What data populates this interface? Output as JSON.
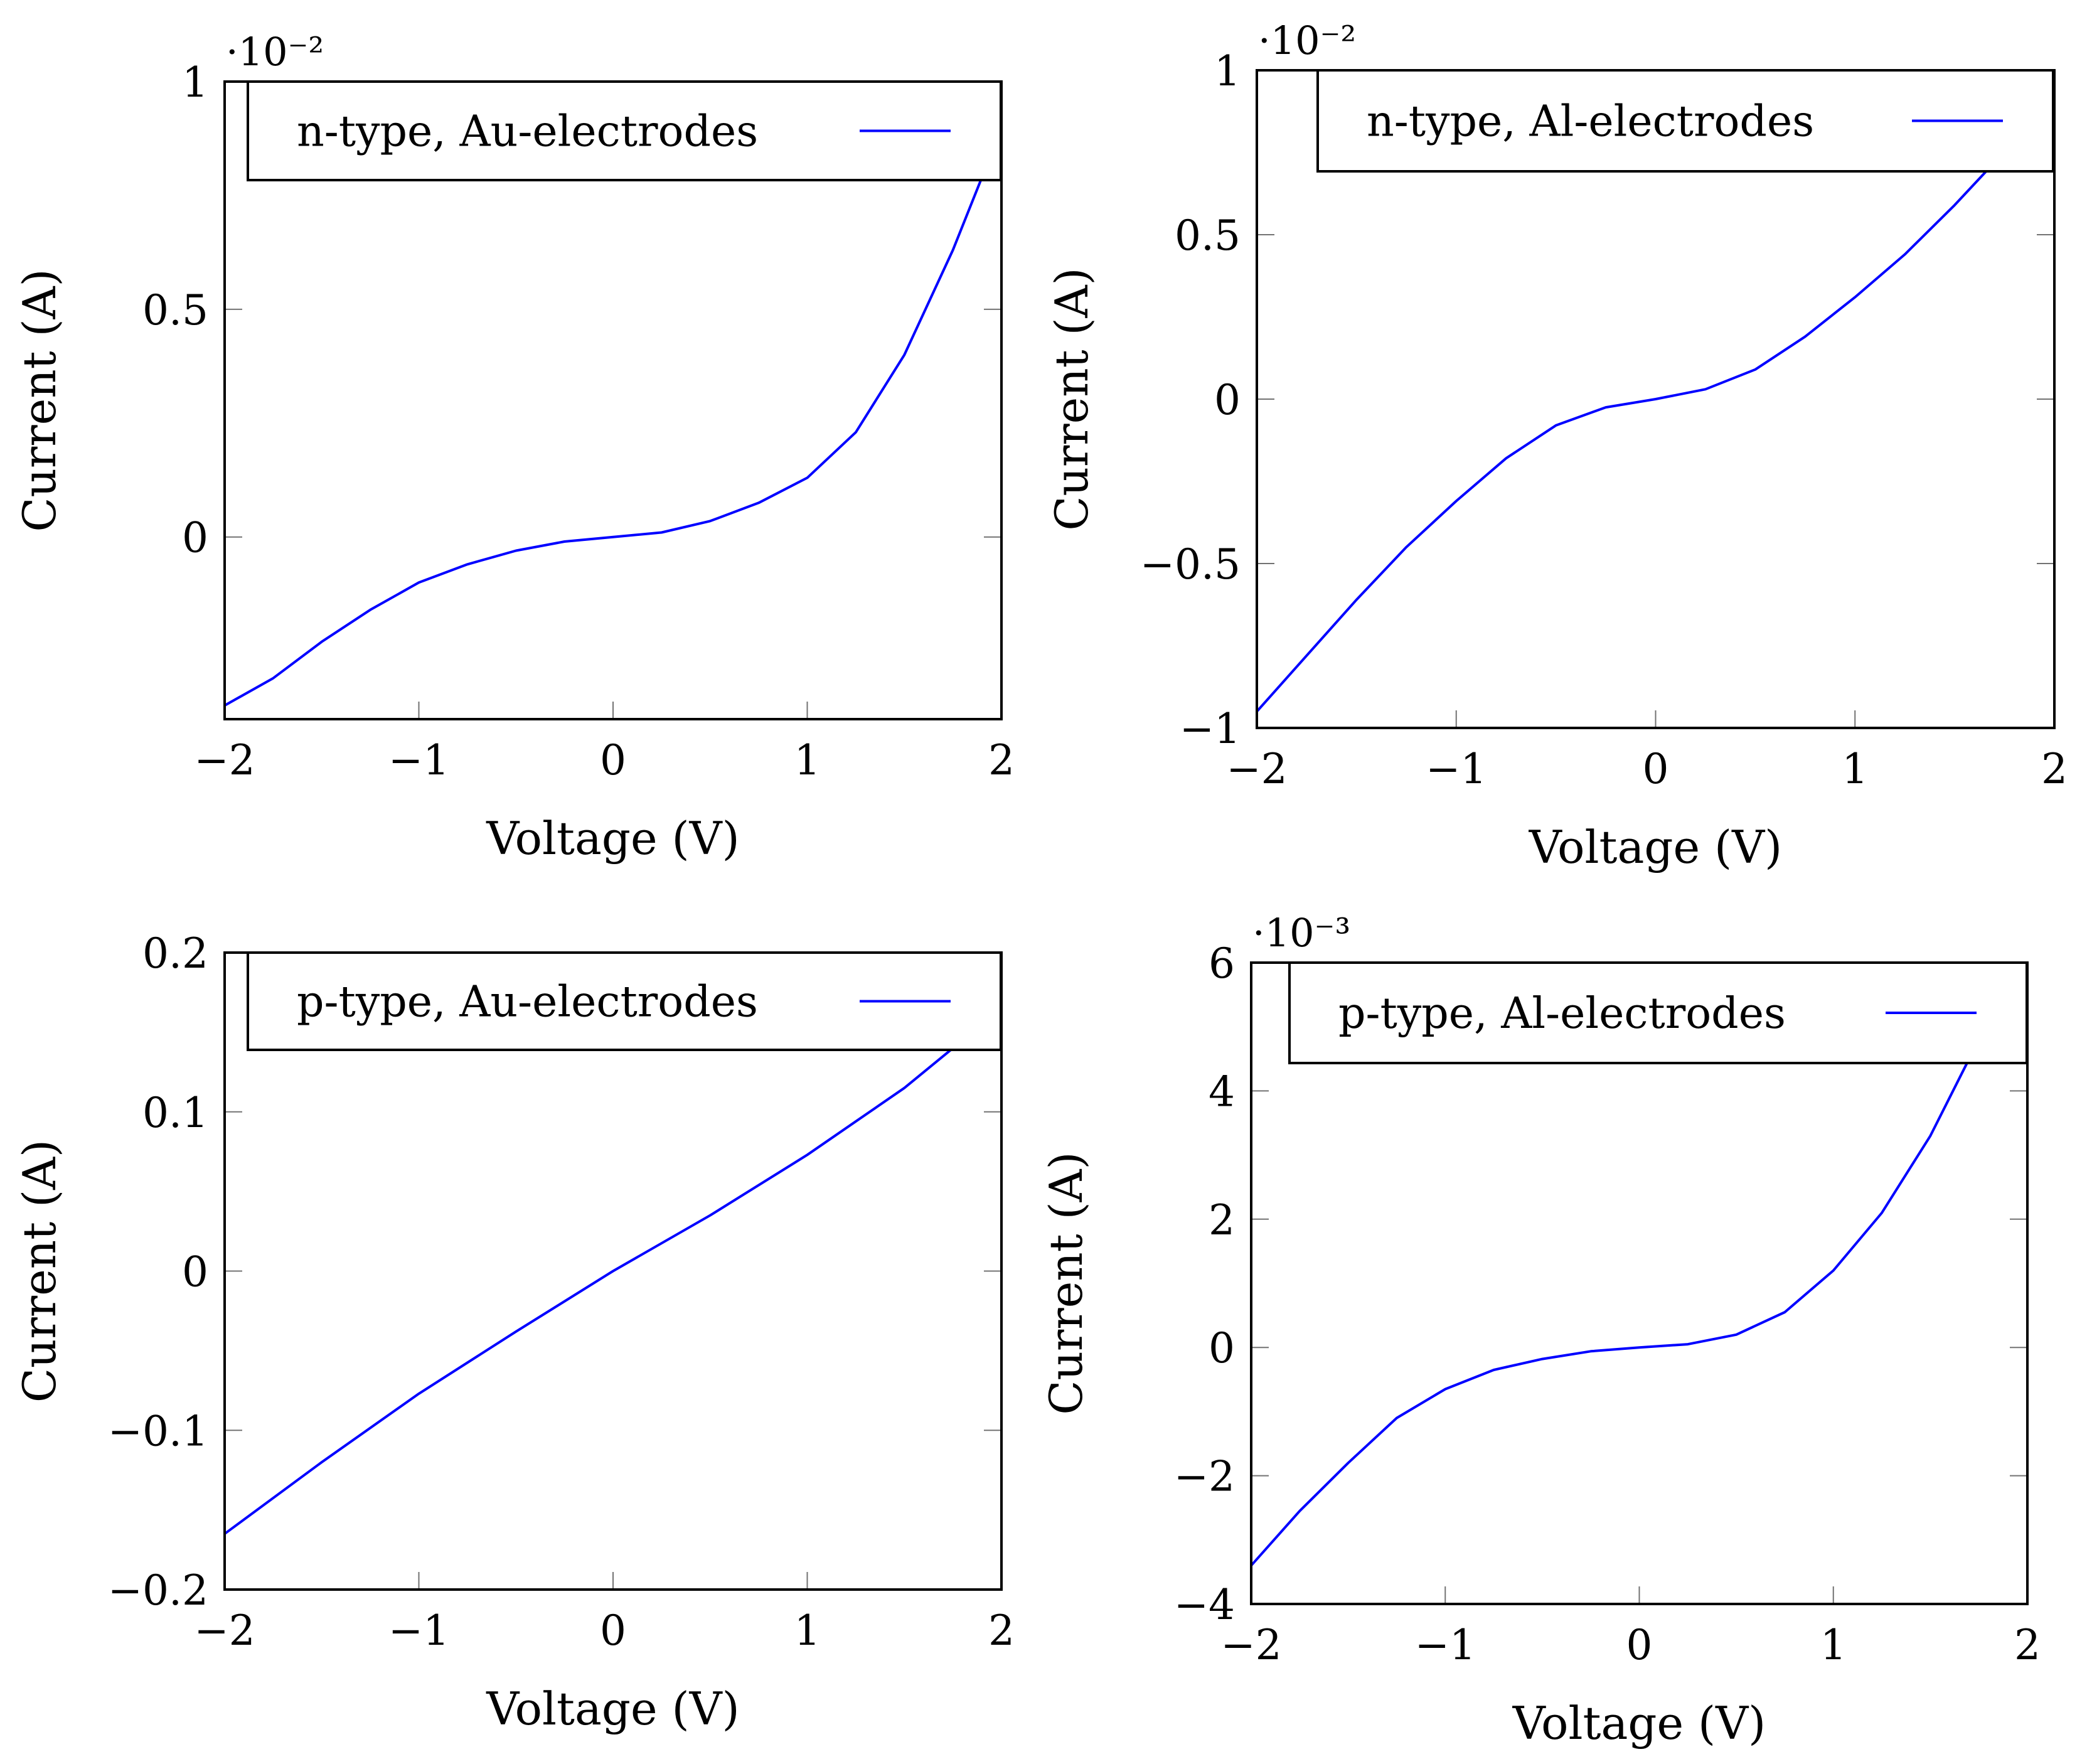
{
  "chart_data": [
    {
      "type": "line",
      "id": "n-au",
      "xlabel": "Voltage (V)",
      "ylabel": "Current (A)",
      "xlim": [
        -2,
        2
      ],
      "ylim": [
        -0.4,
        1.0
      ],
      "y_scale_label": "·10⁻²",
      "xticks": [
        -2,
        -1,
        0,
        1,
        2
      ],
      "xtick_labels": [
        "−2",
        "−1",
        "0",
        "1",
        "2"
      ],
      "yticks": [
        0,
        0.5,
        1
      ],
      "ytick_labels": [
        "0",
        "0.5",
        "1"
      ],
      "legend": "n-type, Au-electrodes",
      "color": "#0000ff",
      "series": [
        {
          "name": "n-type, Au-electrodes",
          "x": [
            -2.0,
            -1.75,
            -1.5,
            -1.25,
            -1.0,
            -0.75,
            -0.5,
            -0.25,
            0.0,
            0.25,
            0.5,
            0.75,
            1.0,
            1.25,
            1.5,
            1.75,
            1.9
          ],
          "y": [
            -0.37,
            -0.31,
            -0.23,
            -0.16,
            -0.1,
            -0.06,
            -0.03,
            -0.01,
            0.0,
            0.01,
            0.035,
            0.075,
            0.13,
            0.23,
            0.4,
            0.63,
            0.79
          ]
        }
      ]
    },
    {
      "type": "line",
      "id": "n-al",
      "xlabel": "Voltage (V)",
      "ylabel": "Current (A)",
      "xlim": [
        -2,
        2
      ],
      "ylim": [
        -1.0,
        1.0
      ],
      "y_scale_label": "·10⁻²",
      "xticks": [
        -2,
        -1,
        0,
        1,
        2
      ],
      "xtick_labels": [
        "−2",
        "−1",
        "0",
        "1",
        "2"
      ],
      "yticks": [
        -1,
        -0.5,
        0,
        0.5,
        1
      ],
      "ytick_labels": [
        "−1",
        "−0.5",
        "0",
        "0.5",
        "1"
      ],
      "legend": "n-type, Al-electrodes",
      "color": "#0000ff",
      "series": [
        {
          "name": "n-type, Al-electrodes",
          "x": [
            -2.0,
            -1.75,
            -1.5,
            -1.25,
            -1.0,
            -0.75,
            -0.5,
            -0.25,
            0.0,
            0.25,
            0.5,
            0.75,
            1.0,
            1.25,
            1.5,
            1.7
          ],
          "y": [
            -0.95,
            -0.78,
            -0.61,
            -0.45,
            -0.31,
            -0.18,
            -0.08,
            -0.025,
            0.0,
            0.03,
            0.09,
            0.19,
            0.31,
            0.44,
            0.59,
            0.72
          ]
        }
      ]
    },
    {
      "type": "line",
      "id": "p-au",
      "xlabel": "Voltage (V)",
      "ylabel": "Current (A)",
      "xlim": [
        -2,
        2
      ],
      "ylim": [
        -0.2,
        0.2
      ],
      "y_scale_label": "",
      "xticks": [
        -2,
        -1,
        0,
        1,
        2
      ],
      "xtick_labels": [
        "−2",
        "−1",
        "0",
        "1",
        "2"
      ],
      "yticks": [
        -0.2,
        -0.1,
        0,
        0.1,
        0.2
      ],
      "ytick_labels": [
        "−0.2",
        "−0.1",
        "0",
        "0.1",
        "0.2"
      ],
      "legend": "p-type, Au-electrodes",
      "color": "#0000ff",
      "series": [
        {
          "name": "p-type, Au-electrodes",
          "x": [
            -2.0,
            -1.5,
            -1.0,
            -0.5,
            0.0,
            0.5,
            1.0,
            1.5,
            1.75
          ],
          "y": [
            -0.165,
            -0.12,
            -0.077,
            -0.038,
            0.0,
            0.035,
            0.073,
            0.115,
            0.14
          ]
        }
      ]
    },
    {
      "type": "line",
      "id": "p-al",
      "xlabel": "Voltage (V)",
      "ylabel": "Current (A)",
      "xlim": [
        -2,
        2
      ],
      "ylim": [
        -4,
        6
      ],
      "y_scale_label": "·10⁻³",
      "xticks": [
        -2,
        -1,
        0,
        1,
        2
      ],
      "xtick_labels": [
        "−2",
        "−1",
        "0",
        "1",
        "2"
      ],
      "yticks": [
        -4,
        -2,
        0,
        2,
        4,
        6
      ],
      "ytick_labels": [
        "−4",
        "−2",
        "0",
        "2",
        "4",
        "6"
      ],
      "legend": "p-type, Al-electrodes",
      "color": "#0000ff",
      "series": [
        {
          "name": "p-type, Al-electrodes",
          "x": [
            -2.0,
            -1.75,
            -1.5,
            -1.25,
            -1.0,
            -0.75,
            -0.5,
            -0.25,
            0.0,
            0.25,
            0.5,
            0.75,
            1.0,
            1.25,
            1.5,
            1.7
          ],
          "y": [
            -3.4,
            -2.55,
            -1.8,
            -1.1,
            -0.65,
            -0.35,
            -0.18,
            -0.06,
            0.0,
            0.05,
            0.2,
            0.55,
            1.2,
            2.1,
            3.3,
            4.5
          ]
        }
      ]
    }
  ]
}
